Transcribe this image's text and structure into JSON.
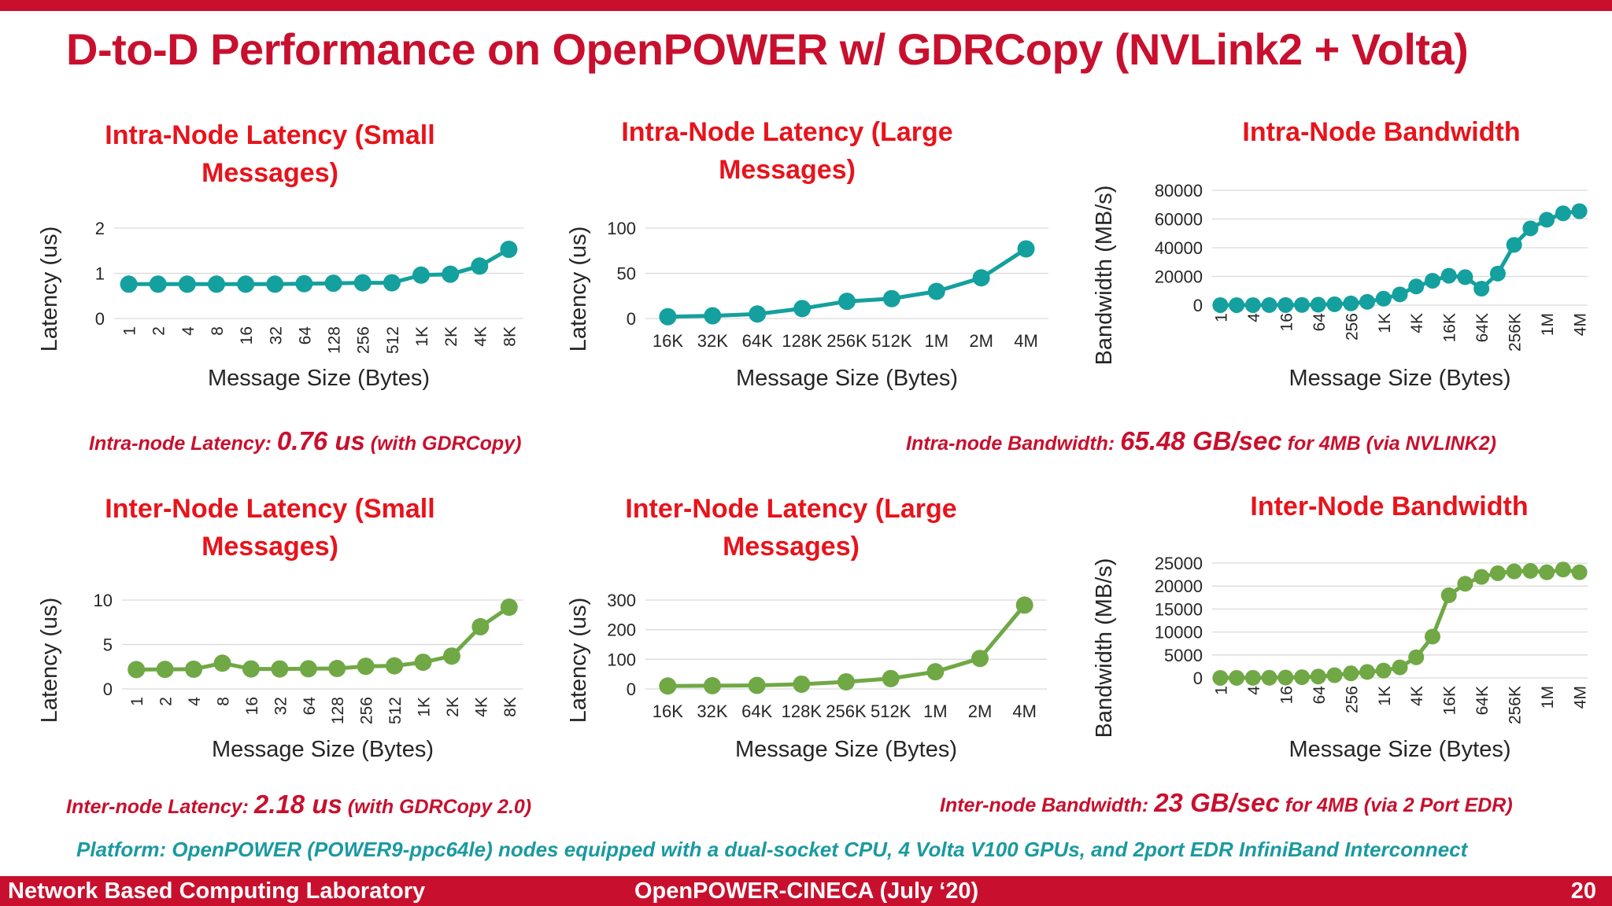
{
  "slide": {
    "title": "D-to-D Performance on OpenPOWER w/ GDRCopy (NVLink2 + Volta)",
    "notes": {
      "intra_latency": {
        "prefix": "Intra-node Latency: ",
        "value": "0.76 us",
        "suffix": " (with GDRCopy)"
      },
      "intra_bandwidth": {
        "prefix": "Intra-node Bandwidth: ",
        "value": "65.48 GB/sec",
        "suffix": " for 4MB (via NVLINK2)"
      },
      "inter_latency": {
        "prefix": "Inter-node Latency: ",
        "value": "2.18 us",
        "suffix": " (with GDRCopy 2.0)"
      },
      "inter_bandwidth": {
        "prefix": "Inter-node Bandwidth: ",
        "value": "23 GB/sec",
        "suffix": " for 4MB (via 2 Port EDR)"
      }
    },
    "platform": "Platform: OpenPOWER (POWER9-ppc64le) nodes equipped with a dual-socket CPU, 4 Volta V100 GPUs, and 2port EDR InfiniBand Interconnect",
    "footer": {
      "left": "Network Based Computing Laboratory",
      "center": "OpenPOWER-CINECA (July ‘20)",
      "page": "20"
    }
  },
  "colors": {
    "intra": "#14a09e",
    "inter": "#70a845",
    "title": "#e8131b",
    "accent": "#c8102e",
    "grid": "#d9d9d9",
    "text": "#262626"
  },
  "chart_data": [
    {
      "id": "intra_small",
      "type": "line",
      "title_lines": [
        "Intra-Node Latency (Small",
        "Messages)"
      ],
      "xlabel": "Message Size (Bytes)",
      "ylabel": "Latency (us)",
      "categories": [
        "1",
        "2",
        "4",
        "8",
        "16",
        "32",
        "64",
        "128",
        "256",
        "512",
        "1K",
        "2K",
        "4K",
        "8K"
      ],
      "xticks_rotated": true,
      "color": "intra",
      "ylim": [
        0,
        2
      ],
      "yticks": [
        0,
        1,
        2
      ],
      "grid": true,
      "values": [
        0.76,
        0.76,
        0.76,
        0.76,
        0.76,
        0.76,
        0.77,
        0.78,
        0.79,
        0.79,
        0.96,
        0.98,
        1.16,
        1.53
      ]
    },
    {
      "id": "intra_large",
      "type": "line",
      "title_lines": [
        "Intra-Node Latency (Large",
        "Messages)"
      ],
      "xlabel": "Message Size (Bytes)",
      "ylabel": "Latency (us)",
      "categories": [
        "16K",
        "32K",
        "64K",
        "128K",
        "256K",
        "512K",
        "1M",
        "2M",
        "4M"
      ],
      "xticks_rotated": false,
      "color": "intra",
      "ylim": [
        0,
        100
      ],
      "yticks": [
        0,
        50,
        100
      ],
      "grid": true,
      "values": [
        2,
        3,
        5,
        11,
        19,
        22,
        30,
        45,
        77
      ]
    },
    {
      "id": "intra_bw",
      "type": "line",
      "title_lines": [
        "Intra-Node Bandwidth"
      ],
      "xlabel": "Message Size (Bytes)",
      "ylabel": "Bandwidth (MB/s)",
      "categories": [
        "1",
        "2",
        "4",
        "8",
        "16",
        "32",
        "64",
        "128",
        "256",
        "512",
        "1K",
        "2K",
        "4K",
        "8K",
        "16K",
        "32K",
        "64K",
        "128K",
        "256K",
        "512K",
        "1M",
        "2M",
        "4M"
      ],
      "category_labels_shown": [
        "1",
        "4",
        "16",
        "64",
        "256",
        "1K",
        "4K",
        "16K",
        "64K",
        "256K",
        "1M",
        "4M"
      ],
      "xticks_rotated": true,
      "color": "intra",
      "ylim": [
        0,
        80000
      ],
      "yticks": [
        0,
        20000,
        40000,
        60000,
        80000
      ],
      "grid": true,
      "values": [
        5,
        10,
        20,
        40,
        80,
        160,
        320,
        640,
        1200,
        2300,
        4500,
        7500,
        13000,
        17000,
        20500,
        19500,
        11500,
        22000,
        42000,
        53500,
        59500,
        64000,
        65480
      ]
    },
    {
      "id": "inter_small",
      "type": "line",
      "title_lines": [
        "Inter-Node Latency (Small",
        "Messages)"
      ],
      "xlabel": "Message Size (Bytes)",
      "ylabel": "Latency (us)",
      "categories": [
        "1",
        "2",
        "4",
        "8",
        "16",
        "32",
        "64",
        "128",
        "256",
        "512",
        "1K",
        "2K",
        "4K",
        "8K"
      ],
      "xticks_rotated": true,
      "color": "inter",
      "ylim": [
        0,
        10
      ],
      "yticks": [
        0,
        5,
        10
      ],
      "grid": true,
      "values": [
        2.18,
        2.2,
        2.22,
        2.9,
        2.25,
        2.25,
        2.27,
        2.3,
        2.55,
        2.6,
        3.0,
        3.7,
        7.0,
        9.2
      ]
    },
    {
      "id": "inter_large",
      "type": "line",
      "title_lines": [
        "Inter-Node Latency (Large",
        "Messages)"
      ],
      "xlabel": "Message Size (Bytes)",
      "ylabel": "Latency (us)",
      "categories": [
        "16K",
        "32K",
        "64K",
        "128K",
        "256K",
        "512K",
        "1M",
        "2M",
        "4M"
      ],
      "xticks_rotated": false,
      "color": "inter",
      "ylim": [
        0,
        300
      ],
      "yticks": [
        0,
        100,
        200,
        300
      ],
      "grid": true,
      "values": [
        10,
        11,
        12,
        16,
        24,
        35,
        58,
        103,
        283
      ]
    },
    {
      "id": "inter_bw",
      "type": "line",
      "title_lines": [
        "Inter-Node Bandwidth"
      ],
      "xlabel": "Message Size (Bytes)",
      "ylabel": "Bandwidth (MB/s)",
      "categories": [
        "1",
        "2",
        "4",
        "8",
        "16",
        "32",
        "64",
        "128",
        "256",
        "512",
        "1K",
        "2K",
        "4K",
        "8K",
        "16K",
        "32K",
        "64K",
        "128K",
        "256K",
        "512K",
        "1M",
        "2M",
        "4M"
      ],
      "category_labels_shown": [
        "1",
        "4",
        "16",
        "64",
        "256",
        "1K",
        "4K",
        "16K",
        "64K",
        "256K",
        "1M",
        "4M"
      ],
      "xticks_rotated": true,
      "color": "inter",
      "ylim": [
        0,
        25000
      ],
      "yticks": [
        0,
        5000,
        10000,
        15000,
        20000,
        25000
      ],
      "grid": true,
      "values": [
        5,
        10,
        20,
        40,
        80,
        160,
        300,
        600,
        1000,
        1300,
        1600,
        2300,
        4500,
        9000,
        18000,
        20500,
        22000,
        22800,
        23200,
        23300,
        23000,
        23600,
        23000
      ]
    }
  ]
}
